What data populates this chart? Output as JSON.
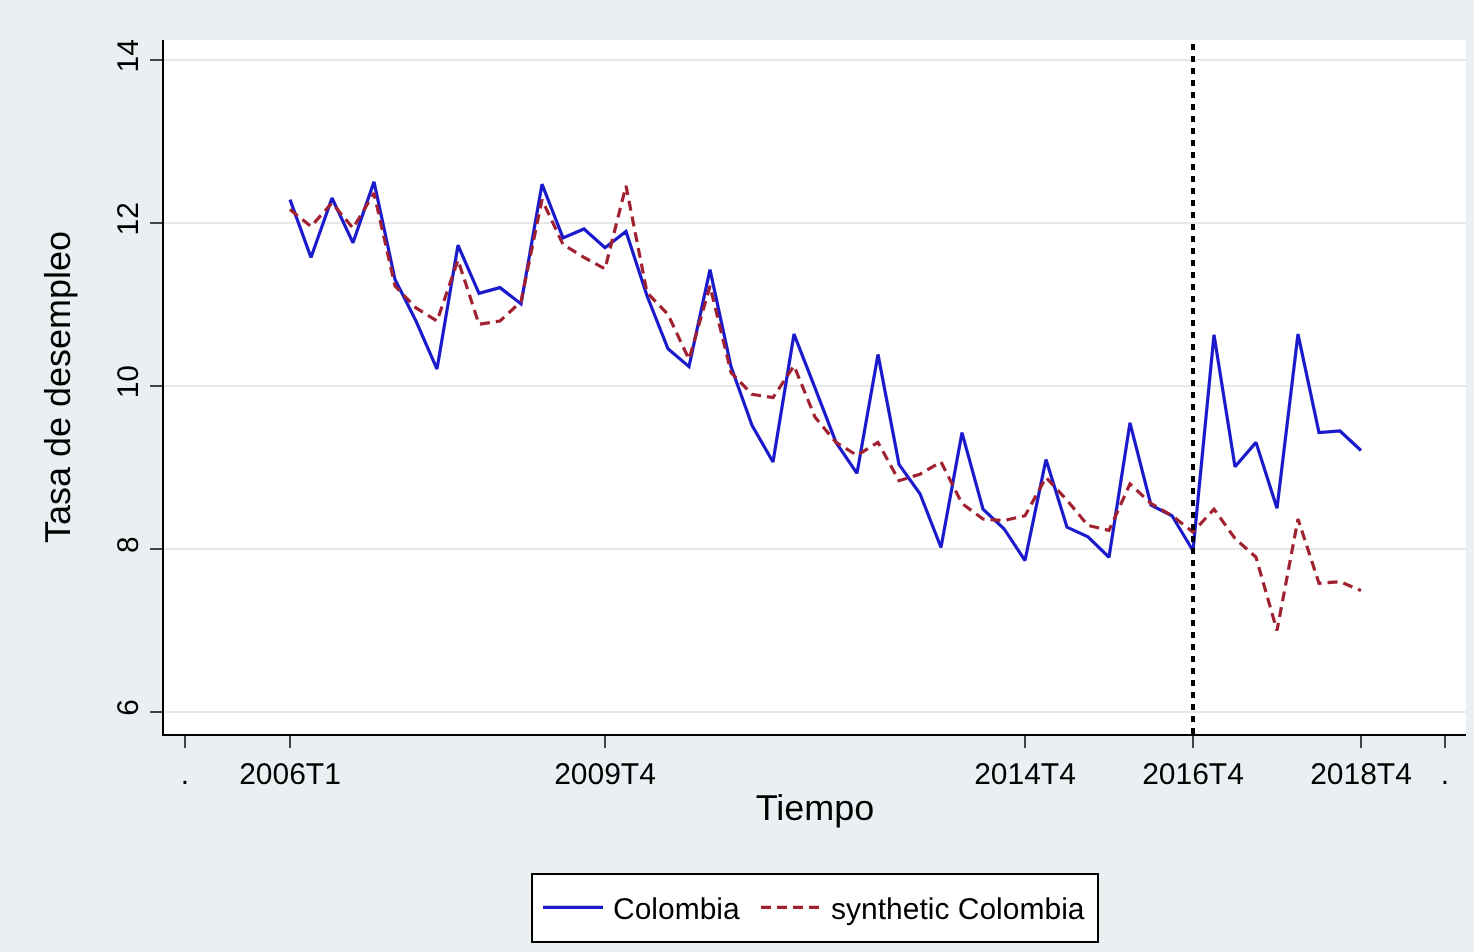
{
  "chart_data": {
    "type": "line",
    "xlabel": "Tiempo",
    "ylabel": "Tasa de desempleo",
    "categories": [
      ".",
      null,
      null,
      null,
      null,
      "2006T1",
      null,
      null,
      null,
      null,
      null,
      null,
      null,
      null,
      null,
      null,
      null,
      null,
      null,
      null,
      "2009T4",
      null,
      null,
      null,
      null,
      null,
      null,
      null,
      null,
      null,
      null,
      null,
      null,
      null,
      null,
      null,
      null,
      null,
      null,
      null,
      "2014T4",
      null,
      null,
      null,
      null,
      null,
      null,
      null,
      "2016T4",
      null,
      null,
      null,
      null,
      null,
      null,
      null,
      "2018T4",
      null,
      null,
      null,
      "."
    ],
    "series": [
      {
        "name": "Colombia",
        "color": "#1a1acc",
        "line_style": "solid",
        "values": [
          null,
          null,
          null,
          null,
          null,
          12.29,
          11.58,
          12.31,
          11.76,
          12.51,
          11.31,
          10.8,
          10.21,
          11.73,
          11.14,
          11.21,
          11.01,
          12.48,
          11.82,
          11.93,
          11.7,
          11.9,
          11.11,
          10.46,
          10.24,
          11.43,
          10.24,
          9.52,
          9.07,
          10.64,
          9.98,
          9.31,
          8.93,
          10.39,
          9.04,
          8.68,
          8.02,
          9.43,
          8.49,
          8.25,
          7.86,
          9.1,
          8.27,
          8.15,
          7.9,
          9.55,
          8.54,
          8.41,
          7.98,
          10.63,
          9.01,
          9.31,
          8.5,
          10.64,
          9.43,
          9.45,
          9.21,
          null,
          null,
          null,
          null
        ]
      },
      {
        "name": "synthetic Colombia",
        "color": "#a02030",
        "line_style": "dashed",
        "values": [
          null,
          null,
          null,
          null,
          null,
          12.17,
          11.96,
          12.25,
          11.94,
          12.37,
          11.23,
          10.96,
          10.8,
          11.55,
          10.76,
          10.8,
          11.04,
          12.29,
          11.74,
          11.58,
          11.44,
          12.46,
          11.15,
          10.88,
          10.33,
          11.23,
          10.17,
          9.9,
          9.86,
          10.25,
          9.62,
          9.31,
          9.15,
          9.31,
          8.84,
          8.92,
          9.07,
          8.56,
          8.37,
          8.35,
          8.41,
          8.88,
          8.6,
          8.29,
          8.23,
          8.8,
          8.56,
          8.41,
          8.21,
          8.49,
          8.13,
          7.9,
          7.0,
          8.37,
          7.58,
          7.6,
          7.49,
          null,
          null,
          null,
          null
        ]
      }
    ],
    "ylim": [
      5.73,
      14.25
    ],
    "yticks": [
      6,
      8,
      10,
      12,
      14
    ],
    "grid": "y",
    "legend": "bottom",
    "marker": "none",
    "ref_lines": [
      {
        "axis": "x",
        "value": "2016T4",
        "color": "#000000",
        "line_style": "dotted"
      }
    ]
  }
}
